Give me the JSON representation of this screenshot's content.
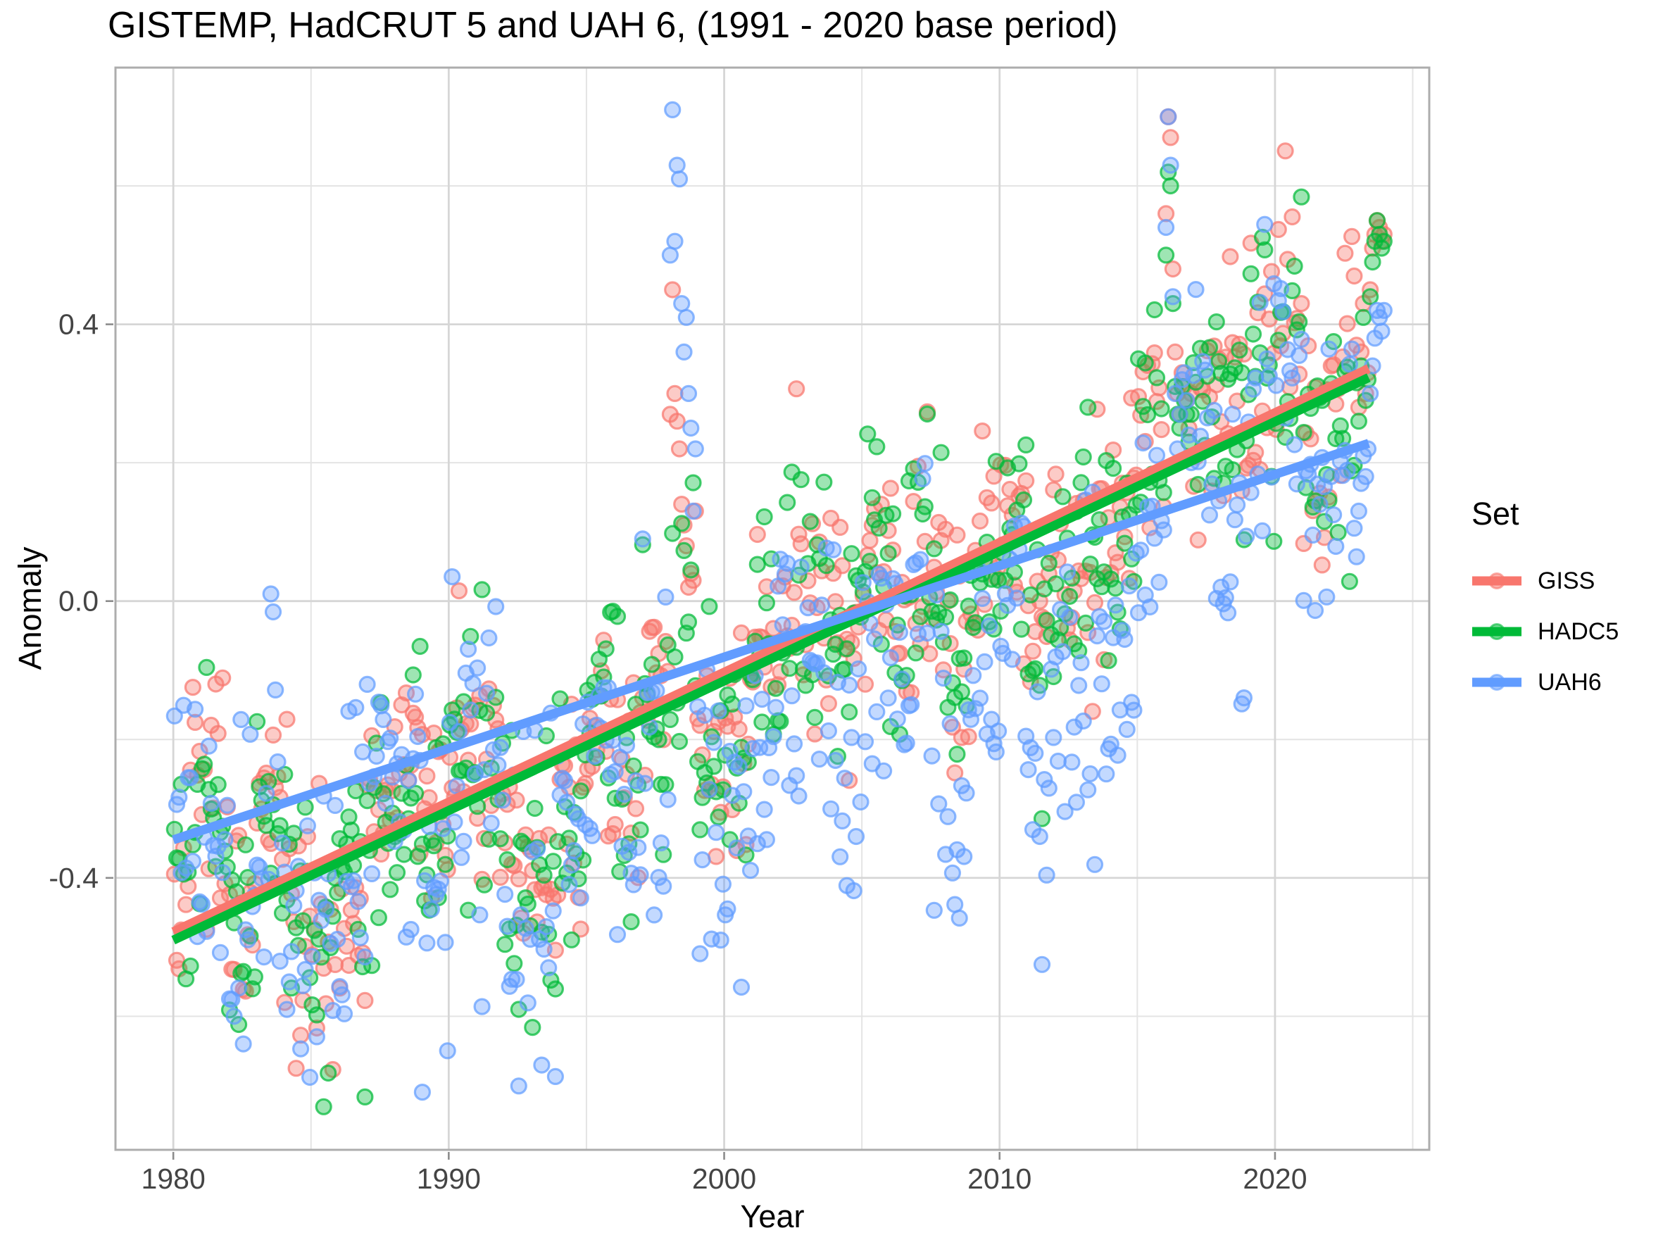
{
  "chart_data": {
    "type": "scatter",
    "title": "GISTEMP, HadCRUT 5 and UAH 6, (1991 - 2020 base period)",
    "xlabel": "Year",
    "ylabel": "Anomaly",
    "legend_title": "Set",
    "legend_position": "right",
    "grid": true,
    "xlim": [
      1977.9,
      2025.6
    ],
    "ylim": [
      -0.793,
      0.771
    ],
    "x_ticks": [
      {
        "v": 1980,
        "label": "1980"
      },
      {
        "v": 1990,
        "label": "1990"
      },
      {
        "v": 2000,
        "label": "2000"
      },
      {
        "v": 2010,
        "label": "2010"
      },
      {
        "v": 2020,
        "label": "2020"
      }
    ],
    "x_minor": [
      1985,
      1995,
      2005,
      2015,
      2025
    ],
    "y_ticks": [
      {
        "v": -0.4,
        "label": "-0.4"
      },
      {
        "v": 0.0,
        "label": "0.0"
      },
      {
        "v": 0.4,
        "label": "0.4"
      }
    ],
    "y_minor": [
      -0.6,
      -0.2,
      0.2,
      0.6
    ],
    "year_start": 1980,
    "resolution": "monthly",
    "series": [
      {
        "name": "GISS",
        "color": "#F8766D",
        "monthly_sd": 0.095,
        "annual": [
          -0.35,
          -0.29,
          -0.47,
          -0.3,
          -0.45,
          -0.49,
          -0.43,
          -0.29,
          -0.22,
          -0.34,
          -0.16,
          -0.2,
          -0.39,
          -0.38,
          -0.3,
          -0.16,
          -0.28,
          -0.15,
          0.0,
          -0.23,
          -0.22,
          -0.08,
          0.02,
          0.01,
          -0.08,
          0.07,
          0.03,
          0.05,
          -0.07,
          0.05,
          0.11,
          0.0,
          0.04,
          0.07,
          0.13,
          0.29,
          0.4,
          0.31,
          0.24,
          0.37,
          0.4,
          0.24,
          0.28,
          0.56
        ],
        "monthly_overrides": {
          "1998": [
            0.27,
            0.45,
            0.3,
            0.26,
            0.22,
            0.14,
            0.11,
            0.08,
            0.02,
            0.04,
            0.03,
            0.13
          ],
          "2016": [
            0.56,
            0.7,
            0.67,
            0.48,
            0.36,
            0.3,
            0.27,
            0.33,
            0.31,
            0.29,
            0.25,
            0.3
          ],
          "2023": [
            0.28,
            0.36,
            0.43,
            0.3,
            0.33,
            0.45,
            0.51,
            0.53,
            0.55,
            0.54,
            0.52,
            0.53
          ]
        },
        "trend": {
          "x": [
            1980.0,
            2023.4
          ],
          "y": [
            -0.478,
            0.336
          ]
        }
      },
      {
        "name": "HADC5",
        "color": "#00BA38",
        "monthly_sd": 0.095,
        "annual": [
          -0.37,
          -0.31,
          -0.49,
          -0.32,
          -0.47,
          -0.5,
          -0.44,
          -0.3,
          -0.24,
          -0.35,
          -0.18,
          -0.21,
          -0.4,
          -0.39,
          -0.31,
          -0.17,
          -0.29,
          -0.14,
          0.01,
          -0.24,
          -0.23,
          -0.09,
          0.01,
          0.0,
          -0.09,
          0.05,
          0.02,
          0.04,
          -0.08,
          0.04,
          0.1,
          -0.01,
          0.03,
          0.06,
          0.12,
          0.28,
          0.38,
          0.29,
          0.22,
          0.35,
          0.38,
          0.22,
          0.26,
          0.54
        ],
        "monthly_overrides": {
          "2016": [
            0.5,
            0.62,
            0.6,
            0.43,
            0.31,
            0.27,
            0.25,
            0.31,
            0.29,
            0.27,
            0.23,
            0.27
          ],
          "2023": [
            0.26,
            0.34,
            0.41,
            0.29,
            0.32,
            0.44,
            0.49,
            0.52,
            0.55,
            0.53,
            0.51,
            0.52
          ]
        },
        "trend": {
          "x": [
            1980.0,
            2023.4
          ],
          "y": [
            -0.49,
            0.323
          ]
        }
      },
      {
        "name": "UAH6",
        "color": "#619CFF",
        "monthly_sd": 0.12,
        "annual": [
          -0.32,
          -0.39,
          -0.45,
          -0.27,
          -0.51,
          -0.46,
          -0.42,
          -0.19,
          -0.29,
          -0.44,
          -0.25,
          -0.22,
          -0.48,
          -0.44,
          -0.33,
          -0.19,
          -0.32,
          -0.24,
          0.18,
          -0.35,
          -0.33,
          -0.19,
          -0.07,
          -0.08,
          -0.19,
          -0.07,
          -0.13,
          -0.1,
          -0.28,
          -0.14,
          0.06,
          -0.22,
          -0.12,
          -0.11,
          -0.08,
          0.09,
          0.39,
          0.26,
          0.09,
          0.3,
          0.36,
          0.13,
          0.17,
          0.42
        ],
        "monthly_overrides": {
          "1998": [
            0.5,
            0.71,
            0.52,
            0.63,
            0.61,
            0.43,
            0.36,
            0.41,
            0.3,
            0.25,
            0.13,
            0.22
          ],
          "2016": [
            0.54,
            0.7,
            0.63,
            0.44,
            0.3,
            0.22,
            0.27,
            0.32,
            0.33,
            0.29,
            0.24,
            0.2
          ],
          "2023": [
            0.13,
            0.17,
            0.21,
            0.18,
            0.22,
            0.3,
            0.34,
            0.38,
            0.42,
            0.41,
            0.39,
            0.42
          ]
        },
        "trend": {
          "x": [
            1980.0,
            2023.4
          ],
          "y": [
            -0.345,
            0.228
          ]
        }
      }
    ]
  }
}
